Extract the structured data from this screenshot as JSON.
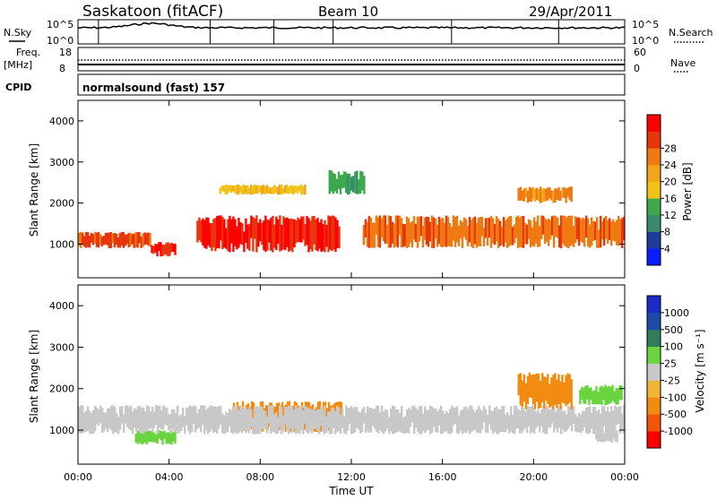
{
  "header": {
    "station": "Saskatoon (fitACF)",
    "beam": "Beam 10",
    "date": "29/Apr/2011"
  },
  "labels": {
    "nsky": "N.Sky",
    "nsearch": "N.Search",
    "freq": "Freq.",
    "freq_unit": "[MHz]",
    "nave": "Nave",
    "cpid": "CPID",
    "cpid_value": "normalsound (fast) 157",
    "xlabel": "Time UT",
    "ylabel": "Slant Range [km]",
    "power_label": "Power [dB]",
    "velocity_label": "Velocity [m s⁻¹]"
  },
  "noise_ticks": {
    "left_top": "10^5",
    "left_bottom": "10^0",
    "right_top": "10^5",
    "right_bottom": "10^0"
  },
  "freq_ticks": {
    "left": [
      "18",
      "8"
    ],
    "right": [
      "60",
      "0"
    ]
  },
  "colors": {
    "power_scale": [
      "#0b1cff",
      "#1e3a9c",
      "#3a8a6e",
      "#3ca94f",
      "#f0c21a",
      "#f2a51c",
      "#f07a12",
      "#e8360c",
      "#ff0000"
    ],
    "velocity_scale": [
      "#ff0000",
      "#f2540c",
      "#f28c10",
      "#f2b437",
      "#c8c8c8",
      "#6ad440",
      "#2f7d5b",
      "#1e4aa8",
      "#1a2cc8"
    ],
    "velocity_band_colors": [
      "#ff0000",
      "#f2540c",
      "#f28c10",
      "#f2b437",
      "#c8c8c8",
      "#c8c8c8",
      "#6ad440",
      "#2f7d5b",
      "#1e4aa8"
    ]
  },
  "chart_data": [
    {
      "type": "heatmap",
      "title": "Power",
      "xlabel": "Time UT",
      "ylabel": "Slant Range [km]",
      "x_ticks": [
        "00:00",
        "04:00",
        "08:00",
        "12:00",
        "16:00",
        "20:00",
        "00:00"
      ],
      "xlim": [
        0,
        24
      ],
      "ylim": [
        180,
        4500
      ],
      "y_ticks": [
        1000,
        2000,
        3000,
        4000
      ],
      "colorbar": {
        "label": "Power [dB]",
        "ticks": [
          4,
          8,
          12,
          16,
          20,
          24,
          28
        ],
        "range": [
          0,
          32
        ]
      },
      "features": [
        {
          "t": [
            0,
            3.2
          ],
          "r": [
            900,
            1300
          ],
          "value": 26
        },
        {
          "t": [
            3.2,
            4.3
          ],
          "r": [
            700,
            1050
          ],
          "value": 29
        },
        {
          "t": [
            5.2,
            11.5
          ],
          "r": [
            800,
            1700
          ],
          "value": 29
        },
        {
          "t": [
            6.2,
            10
          ],
          "r": [
            2200,
            2450
          ],
          "value": 17
        },
        {
          "t": [
            11,
            12.6
          ],
          "r": [
            2200,
            2800
          ],
          "value": 12
        },
        {
          "t": [
            12.5,
            24
          ],
          "r": [
            900,
            1700
          ],
          "value": 24
        },
        {
          "t": [
            19.3,
            21.7
          ],
          "r": [
            2000,
            2400
          ],
          "value": 22
        }
      ]
    },
    {
      "type": "heatmap",
      "title": "Velocity",
      "xlabel": "Time UT",
      "ylabel": "Slant Range [km]",
      "x_ticks": [
        "00:00",
        "04:00",
        "08:00",
        "12:00",
        "16:00",
        "20:00",
        "00:00"
      ],
      "xlim": [
        0,
        24
      ],
      "ylim": [
        180,
        4500
      ],
      "y_ticks": [
        1000,
        2000,
        3000,
        4000
      ],
      "colorbar": {
        "label": "Velocity [m s⁻¹]",
        "ticks": [
          "1000",
          "500",
          "100",
          "25",
          "-25",
          "-100",
          "-500",
          "-1000"
        ],
        "bands": 9
      },
      "features": [
        {
          "t": [
            2.5,
            4.3
          ],
          "r": [
            650,
            1000
          ],
          "value": 200
        },
        {
          "t": [
            6.8,
            11.6
          ],
          "r": [
            950,
            1700
          ],
          "value": -250
        },
        {
          "t": [
            0,
            24
          ],
          "r": [
            900,
            1600
          ],
          "value": 0
        },
        {
          "t": [
            19.3,
            21.7
          ],
          "r": [
            1500,
            2400
          ],
          "value": -250
        },
        {
          "t": [
            22,
            23.9
          ],
          "r": [
            1600,
            2100
          ],
          "value": 200
        },
        {
          "t": [
            22.7,
            23.7
          ],
          "r": [
            700,
            1000
          ],
          "value": 60
        }
      ]
    }
  ]
}
